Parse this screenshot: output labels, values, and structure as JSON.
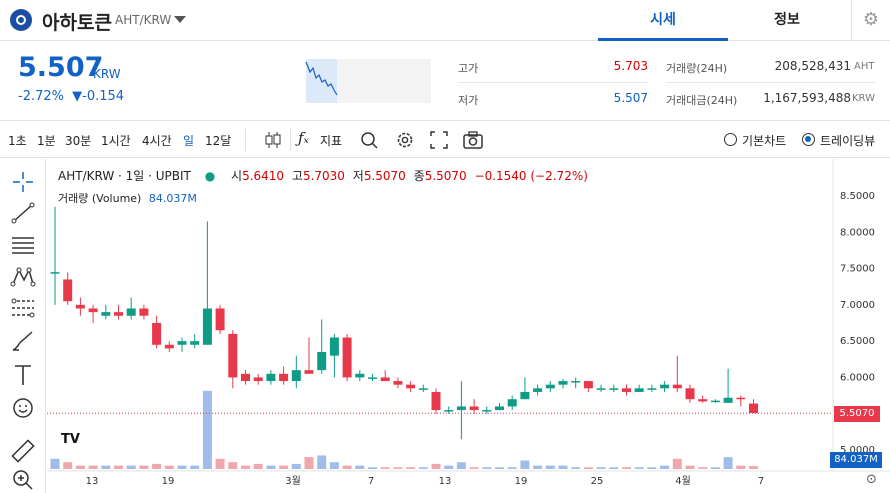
{
  "header": {
    "coin_name": "아하토큰",
    "pair": "AHT/KRW",
    "tabs": [
      "시세",
      "정보"
    ]
  },
  "price": {
    "current": "5.507",
    "unit": "KRW",
    "change_pct": "-2.72%",
    "change_arrow": "▼",
    "change_abs": "-0.154"
  },
  "stats": {
    "high_label": "고가",
    "high": "5.703",
    "low_label": "저가",
    "low": "5.507",
    "volume_label": "거래량(24H)",
    "volume": "208,528,431",
    "volume_unit": "AHT",
    "value_label": "거래대금(24H)",
    "value": "1,167,593,488",
    "value_unit": "KRW"
  },
  "toolbar": {
    "intervals": [
      "1초",
      "1분",
      "30분",
      "1시간",
      "4시간",
      "일",
      "12달"
    ],
    "indicator_label": "지표",
    "radio_basic": "기본차트",
    "radio_tv": "트레이딩뷰"
  },
  "legend": {
    "title": "AHT/KRW · 1일 · UPBIT",
    "o_label": "시",
    "o": "5.6410",
    "h_label": "고",
    "h": "5.7030",
    "l_label": "저",
    "l": "5.5070",
    "c_label": "종",
    "c": "5.5070",
    "chg": "−0.1540 (−2.72%)",
    "vol_label": "거래량 (Volume)",
    "vol": "84.037M"
  },
  "colors": {
    "up": "#e8394a",
    "down": "#0e9c86",
    "accent": "#1261c4",
    "vol_up": "#f0a6ad",
    "vol_down": "#9fbde8"
  },
  "chart_data": {
    "type": "candlestick",
    "title": "AHT/KRW · 1일 · UPBIT",
    "ylim": [
      5.0,
      8.6
    ],
    "y_ticks": [
      "8.5000",
      "8.0000",
      "7.5000",
      "7.0000",
      "6.5000",
      "6.0000",
      "5.0000"
    ],
    "x_ticks": [
      "13",
      "19",
      "3월",
      "7",
      "13",
      "19",
      "25",
      "4월",
      "7"
    ],
    "last_price": "5.5070",
    "last_volume": "84.037M",
    "candles": [
      [
        7.45,
        7.45,
        8.35,
        7.0
      ],
      [
        7.35,
        7.05,
        7.45,
        7.0
      ],
      [
        7.0,
        6.95,
        7.1,
        6.85
      ],
      [
        6.95,
        6.9,
        7.0,
        6.75
      ],
      [
        6.85,
        6.9,
        7.0,
        6.8
      ],
      [
        6.9,
        6.85,
        7.0,
        6.8
      ],
      [
        6.85,
        6.95,
        7.1,
        6.8
      ],
      [
        6.95,
        6.85,
        7.0,
        6.8
      ],
      [
        6.75,
        6.45,
        6.85,
        6.4
      ],
      [
        6.45,
        6.4,
        6.5,
        6.35
      ],
      [
        6.45,
        6.5,
        6.55,
        6.35
      ],
      [
        6.45,
        6.5,
        6.6,
        6.4
      ],
      [
        6.45,
        6.95,
        8.15,
        6.45
      ],
      [
        6.95,
        6.65,
        7.0,
        6.6
      ],
      [
        6.6,
        6.0,
        6.65,
        5.85
      ],
      [
        6.05,
        5.95,
        6.1,
        5.9
      ],
      [
        6.0,
        5.95,
        6.05,
        5.9
      ],
      [
        5.95,
        6.05,
        6.1,
        5.9
      ],
      [
        6.05,
        5.95,
        6.15,
        5.9
      ],
      [
        5.95,
        6.1,
        6.3,
        5.85
      ],
      [
        6.1,
        6.05,
        6.55,
        6.05
      ],
      [
        6.1,
        6.35,
        6.8,
        6.05
      ],
      [
        6.3,
        6.55,
        6.6,
        6.0
      ],
      [
        6.55,
        6.0,
        6.6,
        5.95
      ],
      [
        6.0,
        6.05,
        6.1,
        5.95
      ],
      [
        6.0,
        6.0,
        6.05,
        5.95
      ],
      [
        6.0,
        5.95,
        6.1,
        5.95
      ],
      [
        5.95,
        5.9,
        6.0,
        5.85
      ],
      [
        5.9,
        5.85,
        5.95,
        5.8
      ],
      [
        5.85,
        5.85,
        5.9,
        5.8
      ],
      [
        5.8,
        5.55,
        5.85,
        5.5
      ],
      [
        5.55,
        5.55,
        5.6,
        5.5
      ],
      [
        5.55,
        5.6,
        5.95,
        5.15
      ],
      [
        5.6,
        5.55,
        5.7,
        5.5
      ],
      [
        5.55,
        5.55,
        5.6,
        5.5
      ],
      [
        5.55,
        5.6,
        5.65,
        5.55
      ],
      [
        5.6,
        5.7,
        5.75,
        5.55
      ],
      [
        5.7,
        5.8,
        6.0,
        5.7
      ],
      [
        5.8,
        5.85,
        5.9,
        5.75
      ],
      [
        5.85,
        5.9,
        5.95,
        5.8
      ],
      [
        5.9,
        5.95,
        5.98,
        5.85
      ],
      [
        5.95,
        5.95,
        6.0,
        5.85
      ],
      [
        5.95,
        5.85,
        5.95,
        5.8
      ],
      [
        5.85,
        5.85,
        5.9,
        5.8
      ],
      [
        5.85,
        5.85,
        5.9,
        5.8
      ],
      [
        5.85,
        5.8,
        5.9,
        5.75
      ],
      [
        5.8,
        5.85,
        5.9,
        5.8
      ],
      [
        5.85,
        5.85,
        5.9,
        5.8
      ],
      [
        5.85,
        5.9,
        5.95,
        5.8
      ],
      [
        5.9,
        5.85,
        6.3,
        5.8
      ],
      [
        5.85,
        5.7,
        5.9,
        5.65
      ],
      [
        5.7,
        5.67,
        5.75,
        5.65
      ],
      [
        5.67,
        5.68,
        5.7,
        5.65
      ],
      [
        5.65,
        5.72,
        6.12,
        5.65
      ],
      [
        5.72,
        5.7,
        5.75,
        5.6
      ],
      [
        5.64,
        5.51,
        5.7,
        5.51
      ]
    ],
    "volumes": [
      0.3,
      0.2,
      0.1,
      0.1,
      0.1,
      0.1,
      0.1,
      0.1,
      0.15,
      0.1,
      0.1,
      0.1,
      2.3,
      0.3,
      0.2,
      0.1,
      0.15,
      0.1,
      0.1,
      0.15,
      0.35,
      0.4,
      0.2,
      0.1,
      0.1,
      0.05,
      0.05,
      0.05,
      0.05,
      0.05,
      0.15,
      0.1,
      0.2,
      0.05,
      0.05,
      0.05,
      0.05,
      0.25,
      0.1,
      0.1,
      0.1,
      0.05,
      0.05,
      0.05,
      0.05,
      0.05,
      0.05,
      0.05,
      0.1,
      0.3,
      0.1,
      0.05,
      0.05,
      0.35,
      0.1,
      0.084
    ]
  }
}
